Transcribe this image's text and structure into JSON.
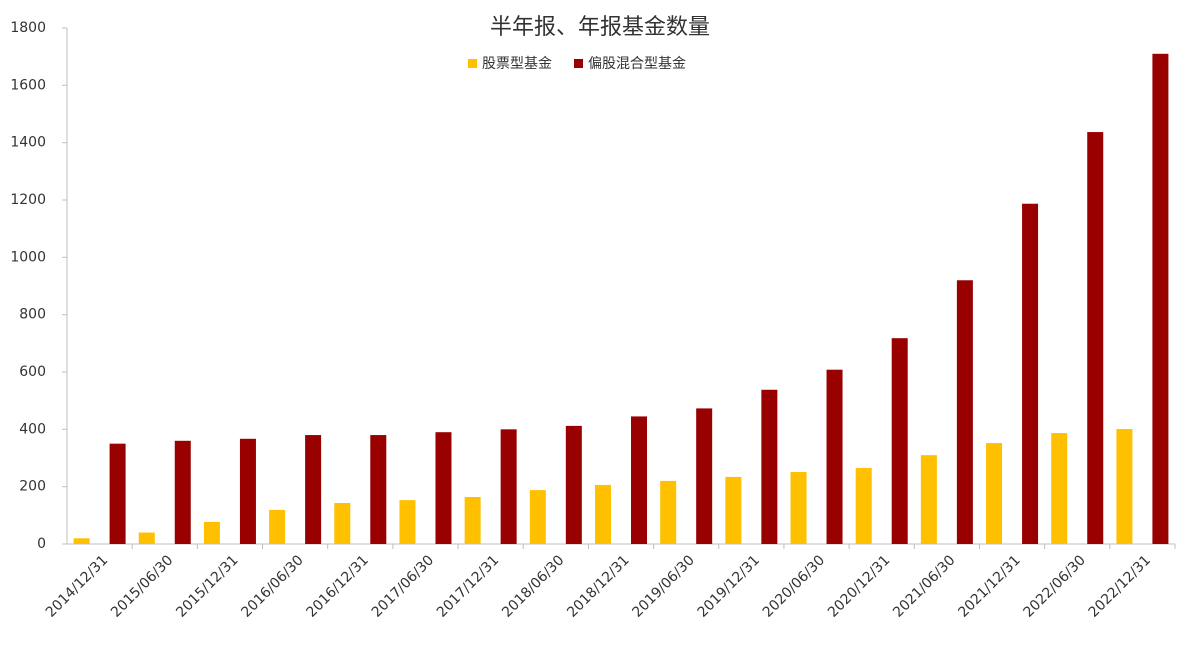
{
  "chart_data": {
    "type": "bar",
    "title": "半年报、年报基金数量",
    "categories": [
      "2014/12/31",
      "2015/06/30",
      "2015/12/31",
      "2016/06/30",
      "2016/12/31",
      "2017/06/30",
      "2017/12/31",
      "2018/06/30",
      "2018/12/31",
      "2019/06/30",
      "2019/12/31",
      "2020/06/30",
      "2020/12/31",
      "2021/06/30",
      "2021/12/31",
      "2022/06/30",
      "2022/12/31"
    ],
    "series": [
      {
        "name": "股票型基金",
        "color": "#ffc000",
        "values": [
          20,
          40,
          77,
          119,
          143,
          153,
          164,
          188,
          206,
          220,
          234,
          251,
          265,
          310,
          352,
          387,
          401
        ]
      },
      {
        "name": "偏股混合型基金",
        "color": "#990000",
        "values": [
          350,
          360,
          367,
          380,
          380,
          390,
          400,
          412,
          445,
          473,
          538,
          608,
          718,
          920,
          1187,
          1437,
          1710
        ]
      }
    ],
    "ylim": [
      0,
      1800
    ],
    "yticks": [
      0,
      200,
      400,
      600,
      800,
      1000,
      1200,
      1400,
      1600,
      1800
    ],
    "grid": false,
    "legend": "top"
  }
}
